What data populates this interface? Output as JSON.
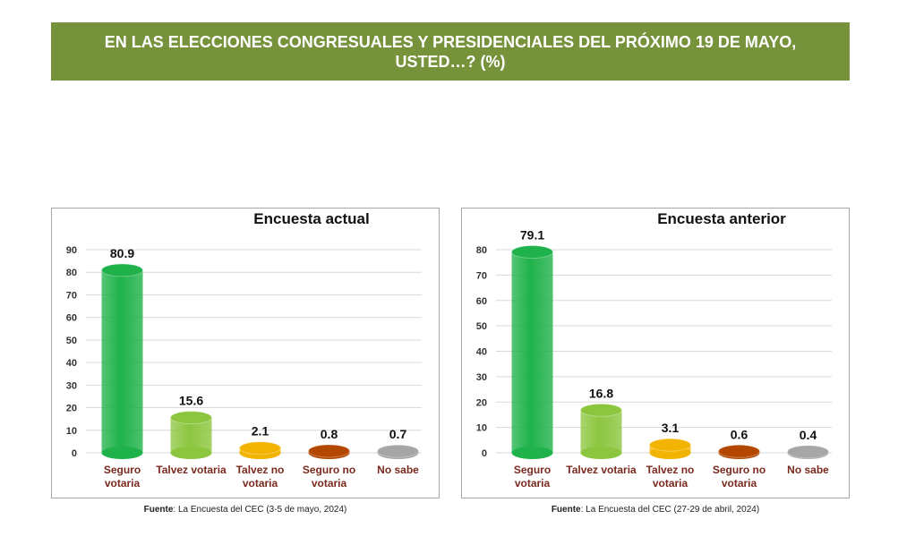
{
  "title": "EN LAS ELECCIONES CONGRESUALES Y PRESIDENCIALES DEL PRÓXIMO 19 DE MAYO, USTED…? (%)",
  "chart_data": [
    {
      "type": "bar",
      "title": "Encuesta actual",
      "categories": [
        "Seguro votaria",
        "Talvez votaria",
        "Talvez no votaria",
        "Seguro no votaria",
        "No sabe"
      ],
      "values": [
        80.9,
        15.6,
        2.1,
        0.8,
        0.7
      ],
      "colors": [
        "#1fb24a",
        "#8cc63f",
        "#f2b400",
        "#b34700",
        "#a6a6a6"
      ],
      "ylim": [
        0,
        90
      ],
      "yticks": [
        0,
        10,
        20,
        30,
        40,
        50,
        60,
        70,
        80,
        90
      ],
      "grid": true,
      "source_label": "Fuente",
      "source_text": ": La Encuesta del CEC (3-5 de mayo, 2024)"
    },
    {
      "type": "bar",
      "title": "Encuesta anterior",
      "categories": [
        "Seguro votaria",
        "Talvez votaria",
        "Talvez no votaria",
        "Seguro no votaria",
        "No sabe"
      ],
      "values": [
        79.1,
        16.8,
        3.1,
        0.6,
        0.4
      ],
      "colors": [
        "#1fb24a",
        "#8cc63f",
        "#f2b400",
        "#b34700",
        "#a6a6a6"
      ],
      "ylim": [
        0,
        80
      ],
      "yticks": [
        0,
        10,
        20,
        30,
        40,
        50,
        60,
        70,
        80
      ],
      "grid": true,
      "source_label": "Fuente",
      "source_text": ": La Encuesta del CEC (27-29 de abril, 2024)"
    }
  ]
}
